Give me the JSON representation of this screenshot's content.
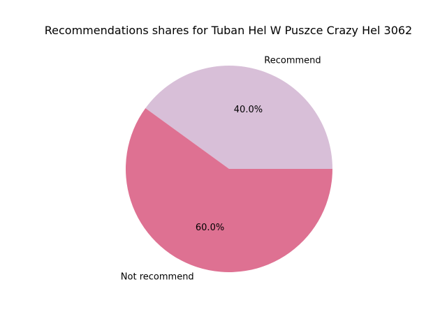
{
  "chart_data": {
    "type": "pie",
    "title": "Recommendations shares for Tuban Hel W Puszce Crazy Hel 3062",
    "slices": [
      {
        "label": "Recommend",
        "value": 40.0,
        "pct_label": "40.0%",
        "color": "#d8bfd8"
      },
      {
        "label": "Not recommend",
        "value": 60.0,
        "pct_label": "60.0%",
        "color": "#de7192"
      }
    ],
    "start_angle_deg": 0,
    "direction": "counterclockwise"
  }
}
